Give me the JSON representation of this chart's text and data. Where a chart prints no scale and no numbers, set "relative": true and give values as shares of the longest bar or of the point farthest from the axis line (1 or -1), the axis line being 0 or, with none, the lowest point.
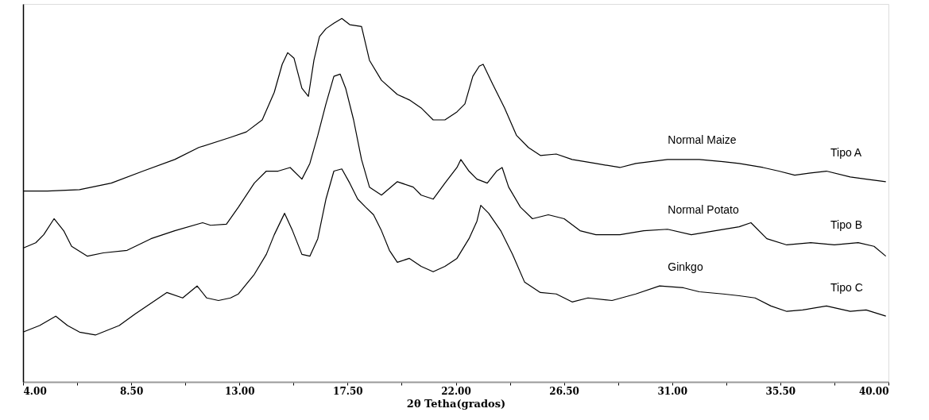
{
  "chart_data": {
    "type": "line",
    "relative": true,
    "xlabel": "2θ Tetha(grados)",
    "xlim": [
      4,
      40
    ],
    "xticks": [
      {
        "value": 4,
        "label": "4.00"
      },
      {
        "value": 6.25,
        "label": null
      },
      {
        "value": 8.5,
        "label": "8.50"
      },
      {
        "value": 10.75,
        "label": null
      },
      {
        "value": 13,
        "label": "13.00"
      },
      {
        "value": 15.25,
        "label": null
      },
      {
        "value": 17.5,
        "label": "17.50"
      },
      {
        "value": 19.75,
        "label": null
      },
      {
        "value": 22,
        "label": "22.00"
      },
      {
        "value": 24.25,
        "label": null
      },
      {
        "value": 26.5,
        "label": "26.50"
      },
      {
        "value": 28.75,
        "label": null
      },
      {
        "value": 31,
        "label": "31.00"
      },
      {
        "value": 33.25,
        "label": null
      },
      {
        "value": 35.5,
        "label": "35.50"
      },
      {
        "value": 37.75,
        "label": null
      },
      {
        "value": 40,
        "label": "40.00"
      }
    ],
    "grid": false,
    "marker": "none",
    "line_style": "solid",
    "annotations": [
      "Tipo A",
      "Tipo B",
      "Tipo C"
    ],
    "series": [
      {
        "name": "Normal Maize",
        "color": "#000000",
        "x": [
          4.0,
          5.02,
          6.35,
          7.67,
          8.99,
          10.31,
          11.31,
          12.63,
          13.29,
          13.95,
          14.45,
          14.78,
          15.01,
          15.27,
          15.6,
          15.87,
          16.1,
          16.33,
          16.6,
          16.93,
          17.26,
          17.59,
          18.08,
          18.41,
          18.91,
          19.57,
          20.07,
          20.56,
          21.06,
          21.55,
          22.05,
          22.38,
          22.71,
          22.98,
          23.14,
          23.54,
          24.03,
          24.53,
          25.02,
          25.52,
          26.18,
          26.84,
          27.83,
          28.83,
          29.49,
          30.81,
          32.13,
          33.12,
          33.79,
          34.78,
          35.44,
          36.1,
          36.76,
          37.42,
          38.41,
          39.07,
          39.89
        ],
        "values": [
          0.525,
          0.525,
          0.529,
          0.547,
          0.58,
          0.612,
          0.645,
          0.673,
          0.688,
          0.721,
          0.797,
          0.874,
          0.906,
          0.891,
          0.808,
          0.786,
          0.885,
          0.95,
          0.972,
          0.987,
          1.0,
          0.983,
          0.978,
          0.885,
          0.83,
          0.791,
          0.776,
          0.754,
          0.721,
          0.721,
          0.743,
          0.765,
          0.841,
          0.869,
          0.874,
          0.819,
          0.754,
          0.678,
          0.645,
          0.623,
          0.627,
          0.612,
          0.601,
          0.59,
          0.601,
          0.612,
          0.612,
          0.606,
          0.601,
          0.59,
          0.58,
          0.569,
          0.575,
          0.58,
          0.564,
          0.558,
          0.551
        ]
      },
      {
        "name": "Normal Potato",
        "color": "#000000",
        "x": [
          4.0,
          4.53,
          4.86,
          5.29,
          5.69,
          6.02,
          6.68,
          7.34,
          8.33,
          9.32,
          10.31,
          11.47,
          11.8,
          12.46,
          12.96,
          13.62,
          14.12,
          14.61,
          15.11,
          15.6,
          15.93,
          16.26,
          16.6,
          16.93,
          17.19,
          17.42,
          17.75,
          18.08,
          18.41,
          18.91,
          19.57,
          20.23,
          20.56,
          21.06,
          21.55,
          22.05,
          22.21,
          22.55,
          22.88,
          23.31,
          23.7,
          23.93,
          24.2,
          24.69,
          25.19,
          25.85,
          26.51,
          27.17,
          27.83,
          28.83,
          29.82,
          30.81,
          31.8,
          32.79,
          33.79,
          34.28,
          34.94,
          35.77,
          36.76,
          37.75,
          38.74,
          39.4,
          39.89
        ],
        "values": [
          0.368,
          0.383,
          0.405,
          0.449,
          0.416,
          0.373,
          0.346,
          0.355,
          0.362,
          0.394,
          0.416,
          0.438,
          0.431,
          0.434,
          0.481,
          0.547,
          0.58,
          0.58,
          0.59,
          0.558,
          0.601,
          0.678,
          0.765,
          0.841,
          0.847,
          0.808,
          0.721,
          0.612,
          0.536,
          0.514,
          0.551,
          0.536,
          0.514,
          0.503,
          0.547,
          0.59,
          0.612,
          0.58,
          0.558,
          0.547,
          0.58,
          0.59,
          0.536,
          0.481,
          0.449,
          0.46,
          0.449,
          0.416,
          0.405,
          0.405,
          0.416,
          0.42,
          0.405,
          0.416,
          0.427,
          0.438,
          0.394,
          0.377,
          0.383,
          0.377,
          0.383,
          0.373,
          0.346
        ]
      },
      {
        "name": "Ginkgo",
        "color": "#000000",
        "x": [
          4.0,
          4.69,
          5.36,
          5.85,
          6.35,
          7.01,
          8.0,
          8.66,
          9.65,
          9.98,
          10.64,
          11.24,
          11.64,
          12.13,
          12.63,
          12.96,
          13.62,
          14.12,
          14.45,
          14.88,
          15.21,
          15.6,
          15.93,
          16.26,
          16.6,
          16.93,
          17.26,
          17.59,
          17.92,
          18.25,
          18.58,
          18.91,
          19.24,
          19.57,
          20.07,
          20.56,
          21.06,
          21.55,
          22.05,
          22.55,
          22.88,
          23.04,
          23.37,
          23.87,
          24.36,
          24.86,
          25.52,
          26.18,
          26.84,
          27.5,
          28.5,
          29.49,
          30.48,
          31.47,
          32.13,
          33.12,
          33.79,
          34.45,
          35.11,
          35.77,
          36.43,
          37.42,
          38.41,
          39.07,
          39.89
        ],
        "values": [
          0.137,
          0.155,
          0.181,
          0.155,
          0.137,
          0.129,
          0.155,
          0.187,
          0.231,
          0.246,
          0.231,
          0.264,
          0.231,
          0.224,
          0.231,
          0.242,
          0.296,
          0.351,
          0.405,
          0.464,
          0.416,
          0.351,
          0.346,
          0.394,
          0.503,
          0.58,
          0.586,
          0.547,
          0.503,
          0.481,
          0.46,
          0.416,
          0.362,
          0.329,
          0.34,
          0.318,
          0.303,
          0.318,
          0.34,
          0.394,
          0.442,
          0.486,
          0.464,
          0.416,
          0.351,
          0.275,
          0.246,
          0.242,
          0.22,
          0.231,
          0.224,
          0.242,
          0.264,
          0.259,
          0.248,
          0.242,
          0.237,
          0.231,
          0.209,
          0.194,
          0.198,
          0.209,
          0.194,
          0.198,
          0.181
        ]
      }
    ]
  }
}
